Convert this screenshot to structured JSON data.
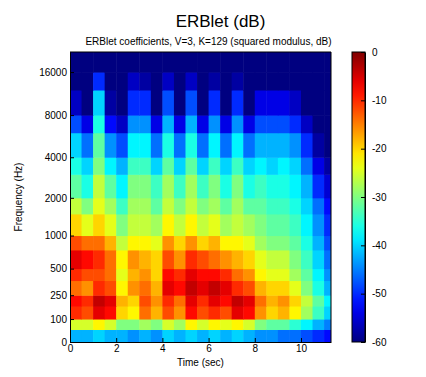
{
  "chart_data": {
    "type": "heatmap",
    "title": "ERBlet (dB)",
    "subtitle": "ERBlet coefficients, V=3, K=129 (squared modulus, dB)",
    "x_label": "Time (sec)",
    "y_label": "Frequency (Hz)",
    "xlim": [
      0,
      11.3
    ],
    "xticks": [
      0,
      2,
      4,
      6,
      8,
      10
    ],
    "ylim": [
      0,
      22050
    ],
    "yticks": [
      0,
      100,
      250,
      500,
      1000,
      2000,
      4000,
      8000,
      16000
    ],
    "x_bins": [
      0,
      0.5,
      1,
      1.5,
      2,
      2.5,
      3,
      3.5,
      4,
      4.5,
      5,
      5.5,
      6,
      6.5,
      7,
      7.5,
      8,
      8.5,
      9,
      9.5,
      10,
      10.5,
      11,
      11.3
    ],
    "y_bins": [
      0,
      50,
      100,
      175,
      250,
      375,
      500,
      750,
      1000,
      1500,
      2000,
      3000,
      4000,
      6000,
      8000,
      12000,
      16000,
      22050
    ],
    "cells": [
      [
        -42,
        -42,
        -40,
        -42,
        -42,
        -44,
        -42,
        -44,
        -40,
        -42,
        -40,
        -42,
        -40,
        -42,
        -40,
        -42,
        -44,
        -44,
        -46,
        -46,
        -48,
        -50,
        -52
      ],
      [
        -25,
        -25,
        -22,
        -25,
        -30,
        -30,
        -28,
        -30,
        -25,
        -28,
        -22,
        -25,
        -22,
        -24,
        -22,
        -25,
        -30,
        -32,
        -32,
        -35,
        -38,
        -42,
        -45
      ],
      [
        -10,
        -12,
        -6,
        -8,
        -20,
        -22,
        -14,
        -18,
        -12,
        -16,
        -8,
        -12,
        -10,
        -12,
        -6,
        -8,
        -16,
        -20,
        -18,
        -22,
        -28,
        -34,
        -40
      ],
      [
        -8,
        -10,
        -4,
        -6,
        -18,
        -20,
        -12,
        -16,
        -10,
        -14,
        -6,
        -10,
        -6,
        -8,
        -4,
        -6,
        -14,
        -18,
        -16,
        -20,
        -26,
        -32,
        -38
      ],
      [
        -14,
        -16,
        -10,
        -12,
        -22,
        -16,
        -14,
        -18,
        -6,
        -8,
        -4,
        -6,
        -4,
        -6,
        -10,
        -12,
        -18,
        -20,
        -20,
        -24,
        -30,
        -36,
        -42
      ],
      [
        -10,
        -12,
        -12,
        -14,
        -24,
        -18,
        -16,
        -20,
        -8,
        -10,
        -6,
        -8,
        -8,
        -10,
        -14,
        -16,
        -22,
        -24,
        -24,
        -28,
        -32,
        -38,
        -44
      ],
      [
        -6,
        -8,
        -10,
        -14,
        -22,
        -16,
        -18,
        -20,
        -12,
        -16,
        -10,
        -12,
        -14,
        -16,
        -18,
        -20,
        -24,
        -26,
        -26,
        -30,
        -34,
        -40,
        -46
      ],
      [
        -12,
        -14,
        -14,
        -18,
        -26,
        -22,
        -22,
        -24,
        -16,
        -20,
        -16,
        -20,
        -18,
        -22,
        -22,
        -24,
        -28,
        -30,
        -30,
        -32,
        -36,
        -42,
        -48
      ],
      [
        -20,
        -24,
        -20,
        -24,
        -30,
        -26,
        -26,
        -28,
        -22,
        -26,
        -22,
        -26,
        -24,
        -28,
        -26,
        -28,
        -30,
        -32,
        -32,
        -34,
        -38,
        -44,
        -50
      ],
      [
        -26,
        -30,
        -24,
        -28,
        -34,
        -28,
        -28,
        -32,
        -26,
        -30,
        -26,
        -30,
        -28,
        -32,
        -28,
        -32,
        -32,
        -34,
        -34,
        -36,
        -40,
        -46,
        -52
      ],
      [
        -32,
        -36,
        -26,
        -32,
        -38,
        -30,
        -30,
        -34,
        -28,
        -34,
        -28,
        -34,
        -30,
        -36,
        -30,
        -36,
        -34,
        -36,
        -36,
        -38,
        -42,
        -50,
        -55
      ],
      [
        -36,
        -40,
        -30,
        -38,
        -42,
        -34,
        -34,
        -40,
        -32,
        -40,
        -32,
        -40,
        -34,
        -40,
        -34,
        -40,
        -38,
        -40,
        -38,
        -40,
        -46,
        -54,
        -58
      ],
      [
        -40,
        -46,
        -32,
        -44,
        -48,
        -38,
        -38,
        -46,
        -36,
        -46,
        -36,
        -46,
        -38,
        -46,
        -38,
        -46,
        -42,
        -42,
        -42,
        -44,
        -50,
        -58,
        -60
      ],
      [
        -48,
        -54,
        -36,
        -52,
        -56,
        -44,
        -44,
        -54,
        -42,
        -54,
        -42,
        -54,
        -44,
        -54,
        -44,
        -54,
        -48,
        -48,
        -48,
        -50,
        -56,
        -60,
        -60
      ],
      [
        -56,
        -60,
        -40,
        -58,
        -60,
        -50,
        -50,
        -60,
        -48,
        -60,
        -48,
        -60,
        -50,
        -60,
        -50,
        -60,
        -54,
        -54,
        -54,
        -56,
        -60,
        -60,
        -60
      ],
      [
        -60,
        -60,
        -50,
        -60,
        -60,
        -56,
        -58,
        -60,
        -56,
        -60,
        -56,
        -60,
        -58,
        -60,
        -58,
        -60,
        -60,
        -60,
        -60,
        -60,
        -60,
        -60,
        -60
      ],
      [
        -60,
        -60,
        -60,
        -60,
        -60,
        -60,
        -60,
        -60,
        -60,
        -60,
        -60,
        -60,
        -60,
        -60,
        -60,
        -60,
        -60,
        -60,
        -60,
        -60,
        -60,
        -60,
        -60
      ]
    ],
    "colorbar_range": [
      -60,
      0
    ],
    "colorbar_ticks": [
      0,
      -10,
      -20,
      -30,
      -40,
      -50,
      -60
    ]
  }
}
